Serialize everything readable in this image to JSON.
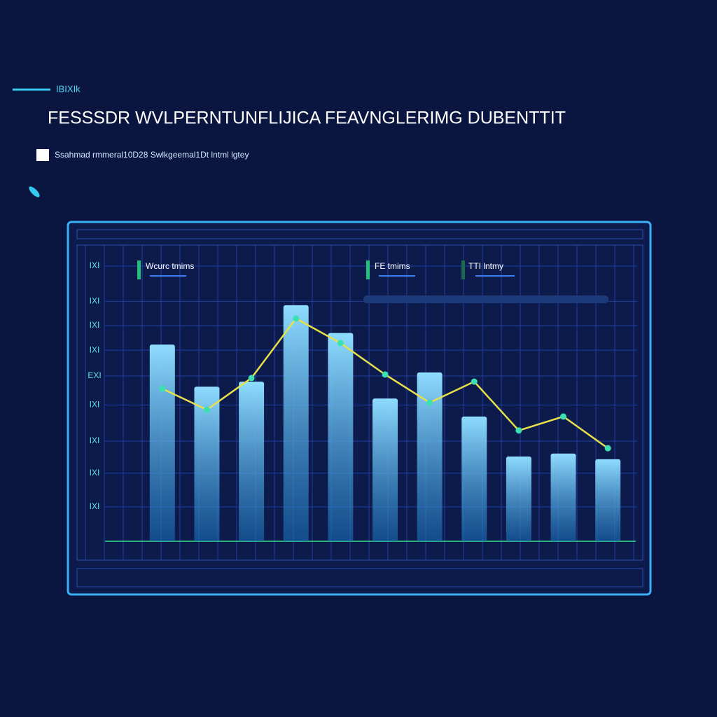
{
  "top_label": "IBIXIk",
  "chart_data": {
    "type": "bar",
    "title": "FESSSDR WVLPERNTUNFLIJICA FEAVNGLERIMG DUBENTTIT",
    "subtitle": "Ssahmad rmmeral10D28 Swlkgeemal1Dt lntml lgtey",
    "categories": [
      null,
      null,
      null,
      null,
      null,
      null,
      null,
      null,
      null,
      null,
      null
    ],
    "series": [
      {
        "name": "Wcurc tmims",
        "color": "#5ec8f0",
        "values": [
          66.4,
          52.2,
          53.9,
          79.7,
          70.3,
          48.2,
          57.0,
          42.1,
          28.6,
          29.6,
          27.7
        ]
      },
      {
        "name": "FE tmims",
        "color": "#e6e04a",
        "type": "line",
        "values": [
          51.5,
          44.4,
          55.1,
          75.2,
          66.9,
          56.3,
          46.8,
          53.9,
          37.4,
          42.1,
          31.4
        ]
      }
    ],
    "annotations": [
      "TTI lntmy"
    ],
    "ylim": [
      0,
      100
    ],
    "yticks": [
      {
        "value": 11.6,
        "label": "IXI"
      },
      {
        "value": 23,
        "label": "IXI"
      },
      {
        "value": 33.8,
        "label": "IXI"
      },
      {
        "value": 46,
        "label": "IXI"
      },
      {
        "value": 55.8,
        "label": "EXI"
      },
      {
        "value": 64.5,
        "label": "IXI"
      },
      {
        "value": 72.8,
        "label": "IXI"
      },
      {
        "value": 81,
        "label": "IXI"
      },
      {
        "value": 92.9,
        "label": "IXI"
      }
    ],
    "grid": true
  }
}
